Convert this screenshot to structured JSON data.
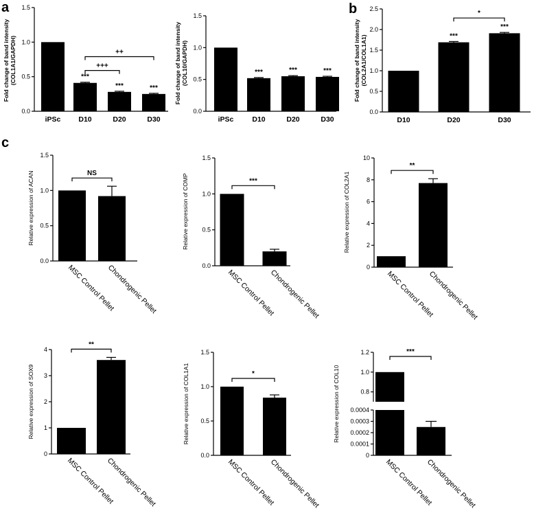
{
  "panel_labels": [
    "a",
    "b",
    "c"
  ],
  "chart_data": [
    {
      "id": "a1",
      "panel": "a",
      "type": "bar",
      "categories": [
        "iPSc",
        "D10",
        "D20",
        "D30"
      ],
      "values": [
        1.0,
        0.41,
        0.28,
        0.25
      ],
      "errors": [
        0,
        0.01,
        0.01,
        0.01
      ],
      "ylabel": "Fold change of band intensity",
      "ylabel2": "(COL1A1/GAPDH)",
      "ylim": [
        0,
        1.5
      ],
      "yticks": [
        "0.0",
        "0.5",
        "1.0",
        "1.5"
      ],
      "bar_marks": [
        "",
        "***",
        "***",
        "***"
      ],
      "brackets": [
        {
          "from": "D10",
          "to": "D20",
          "label": "+++"
        },
        {
          "from": "D10",
          "to": "D30",
          "label": "++"
        }
      ]
    },
    {
      "id": "a2",
      "panel": "a",
      "type": "bar",
      "categories": [
        "iPSc",
        "D10",
        "D20",
        "D30"
      ],
      "values": [
        1.0,
        0.52,
        0.55,
        0.54
      ],
      "errors": [
        0,
        0.01,
        0.01,
        0.01
      ],
      "ylabel": "Fold change of band intensity",
      "ylabel2": "(COL10/GAPDH)",
      "ylim": [
        0,
        1.5
      ],
      "yticks": [
        "0.0",
        "0.5",
        "1.0",
        "1.5"
      ],
      "bar_marks": [
        "",
        "***",
        "***",
        "***"
      ],
      "brackets": []
    },
    {
      "id": "b1",
      "panel": "b",
      "type": "bar",
      "categories": [
        "D10",
        "D20",
        "D30"
      ],
      "values": [
        1.0,
        1.69,
        1.91
      ],
      "errors": [
        0,
        0.02,
        0.02
      ],
      "ylabel": "Fold change of band intensity",
      "ylabel2": "(COL2A1/COL1A1)",
      "ylim": [
        0,
        2.5
      ],
      "yticks": [
        "0.0",
        "0.5",
        "1.0",
        "1.5",
        "2.0",
        "2.5"
      ],
      "bar_marks": [
        "",
        "***",
        "***"
      ],
      "brackets": [
        {
          "from": "D20",
          "to": "D30",
          "label": "*"
        }
      ]
    },
    {
      "id": "c1",
      "panel": "c",
      "type": "bar",
      "categories": [
        "MSC Control Pellet",
        "Chondrogenic Pellet"
      ],
      "values": [
        1.0,
        0.92
      ],
      "errors": [
        0,
        0.14
      ],
      "ylabel": "Relative expression of ACAN",
      "ylim": [
        0,
        1.5
      ],
      "yticks": [
        "0.0",
        "0.5",
        "1.0",
        "1.5"
      ],
      "brackets": [
        {
          "from": "MSC Control Pellet",
          "to": "Chondrogenic Pellet",
          "label": "NS"
        }
      ]
    },
    {
      "id": "c2",
      "panel": "c",
      "type": "bar",
      "categories": [
        "MSC Control Pellet",
        "Chondrogenic Pellet"
      ],
      "values": [
        1.0,
        0.2
      ],
      "errors": [
        0,
        0.03
      ],
      "ylabel": "Relative expression of COMP",
      "ylim": [
        0,
        1.5
      ],
      "yticks": [
        "0.0",
        "0.5",
        "1.0",
        "1.5"
      ],
      "brackets": [
        {
          "from": "MSC Control Pellet",
          "to": "Chondrogenic Pellet",
          "label": "***"
        }
      ]
    },
    {
      "id": "c3",
      "panel": "c",
      "type": "bar",
      "categories": [
        "MSC Control Pellet",
        "Chondrogenic Pellet"
      ],
      "values": [
        1.0,
        7.7
      ],
      "errors": [
        0,
        0.4
      ],
      "ylabel": "Relative expression of COL2A1",
      "ylim": [
        0,
        10
      ],
      "yticks": [
        "0",
        "2",
        "4",
        "6",
        "8",
        "10"
      ],
      "brackets": [
        {
          "from": "MSC Control Pellet",
          "to": "Chondrogenic Pellet",
          "label": "**"
        }
      ]
    },
    {
      "id": "c4",
      "panel": "c",
      "type": "bar",
      "categories": [
        "MSC Control Pellet",
        "Chondrogenic Pellet"
      ],
      "values": [
        1.0,
        3.6
      ],
      "errors": [
        0,
        0.1
      ],
      "ylabel": "Relative expression of SOX9",
      "ylim": [
        0,
        4
      ],
      "yticks": [
        "0",
        "1",
        "2",
        "3",
        "4"
      ],
      "brackets": [
        {
          "from": "MSC Control Pellet",
          "to": "Chondrogenic Pellet",
          "label": "**"
        }
      ]
    },
    {
      "id": "c5",
      "panel": "c",
      "type": "bar",
      "categories": [
        "MSC Control Pellet",
        "Chondrogenic Pellet"
      ],
      "values": [
        1.0,
        0.84
      ],
      "errors": [
        0,
        0.04
      ],
      "ylabel": "Relative expression of COL1A1",
      "ylim": [
        0,
        1.5
      ],
      "yticks": [
        "0.0",
        "0.5",
        "1.0",
        "1.5"
      ],
      "brackets": [
        {
          "from": "MSC Control Pellet",
          "to": "Chondrogenic Pellet",
          "label": "*"
        }
      ]
    },
    {
      "id": "c6",
      "panel": "c",
      "type": "bar",
      "broken_axis": true,
      "categories": [
        "MSC Control Pellet",
        "Chondrogenic Pellet"
      ],
      "values": [
        1.0,
        0.00025
      ],
      "errors": [
        0,
        5e-05
      ],
      "ylabel": "Relative expression of COL10",
      "ylim_lower": [
        0,
        0.0004
      ],
      "ylim_upper": [
        0.7,
        1.2
      ],
      "yticks_lower": [
        "0",
        "0.0001",
        "0.0002",
        "0.0003",
        "0.0004"
      ],
      "yticks_upper": [
        "0.8",
        "1.0",
        "1.2"
      ],
      "brackets": [
        {
          "from": "MSC Control Pellet",
          "to": "Chondrogenic Pellet",
          "label": "***"
        }
      ]
    }
  ]
}
